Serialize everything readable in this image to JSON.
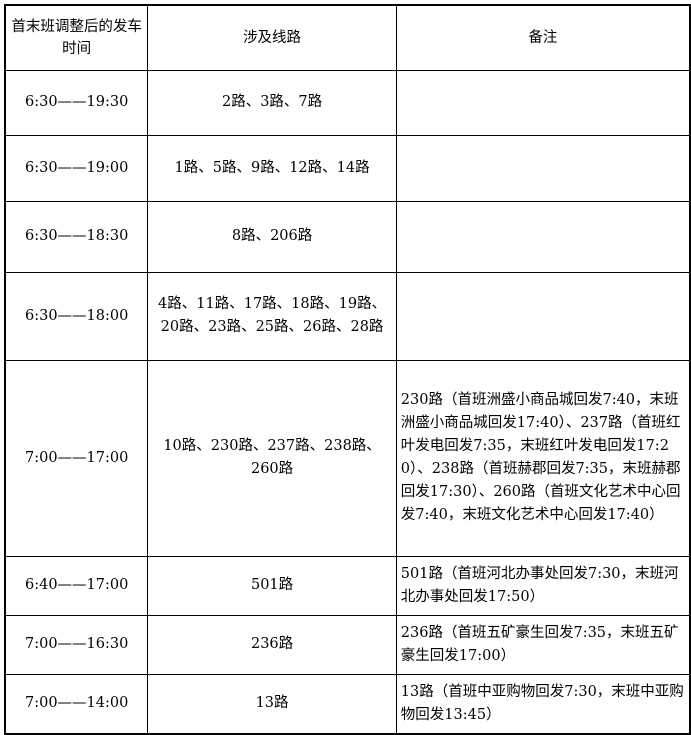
{
  "header": {
    "time": "首末班调整后的发车时间",
    "routes": "涉及线路",
    "remarks": "备注"
  },
  "rows": [
    {
      "time": "6:30——19:30",
      "routes": "2路、3路、7路",
      "remarks": ""
    },
    {
      "time": "6:30——19:00",
      "routes": "1路、5路、9路、12路、14路",
      "remarks": ""
    },
    {
      "time": "6:30——18:30",
      "routes": "8路、206路",
      "remarks": ""
    },
    {
      "time": "6:30——18:00",
      "routes": "4路、11路、17路、18路、19路、20路、23路、25路、26路、28路",
      "remarks": ""
    },
    {
      "time": "7:00——17:00",
      "routes": "10路、230路、237路、238路、260路",
      "remarks": "230路（首班洲盛小商品城回发7:40，末班洲盛小商品城回发17:40）、237路（首班红叶发电回发7:35，末班红叶发电回发17:20）、238路（首班赫郡回发7:35，末班赫郡回发17:30）、260路（首班文化艺术中心回发7:40，末班文化艺术中心回发17:40）"
    },
    {
      "time": "6:40——17:00",
      "routes": "501路",
      "remarks": "501路（首班河北办事处回发7:30，末班河北办事处回发17:50）"
    },
    {
      "time": "7:00——16:30",
      "routes": "236路",
      "remarks": "236路（首班五矿豪生回发7:35，末班五矿豪生回发17:00）"
    },
    {
      "time": "7:00——14:00",
      "routes": "13路",
      "remarks": "13路（首班中亚购物回发7:30，末班中亚购物回发13:45）"
    }
  ]
}
